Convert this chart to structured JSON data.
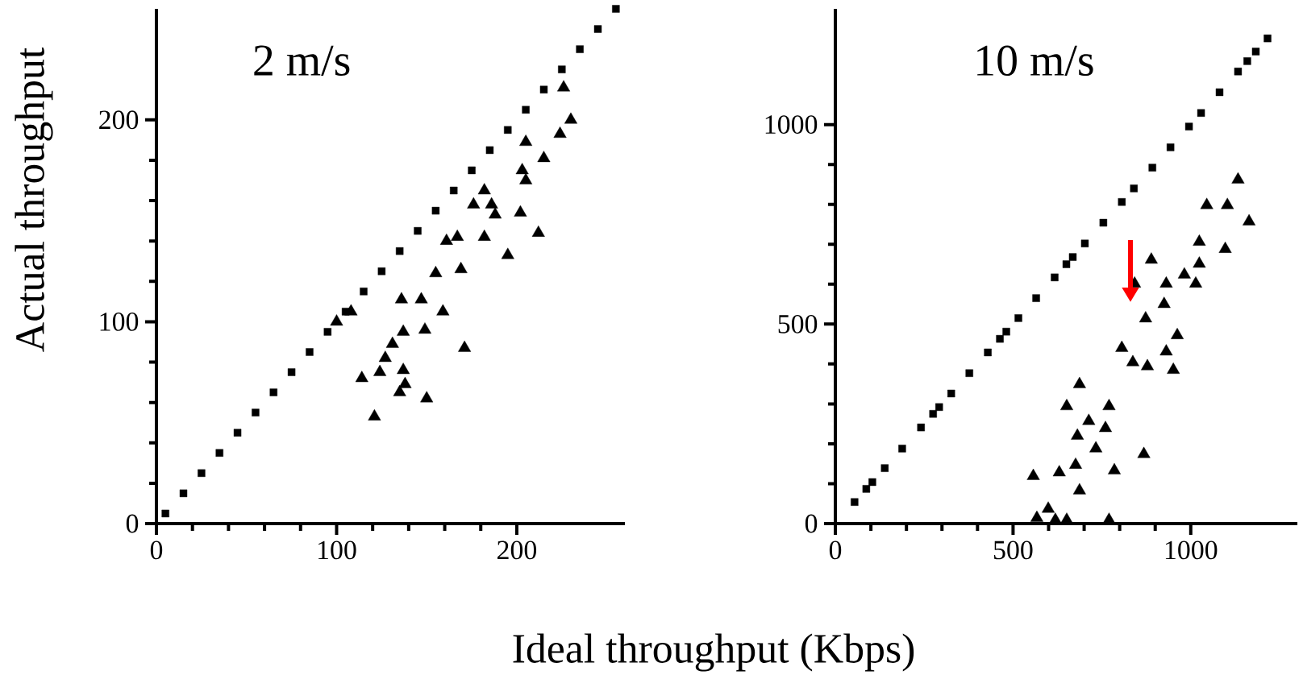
{
  "chart_data": [
    {
      "type": "scatter",
      "title": "2 m/s",
      "xlabel": "Ideal throughput (Kbps)",
      "ylabel": "Actual throughput",
      "xlim": [
        0,
        260
      ],
      "ylim": [
        0,
        255
      ],
      "xticks": [
        0,
        100,
        200
      ],
      "yticks": [
        0,
        100,
        200
      ],
      "series": [
        {
          "color": "#000000",
          "marker": "square",
          "x": [
            5,
            15,
            25,
            35,
            45,
            55,
            65,
            75,
            85,
            95,
            105,
            115,
            125,
            135,
            145,
            155,
            165,
            175,
            185,
            195,
            205,
            215,
            225,
            235,
            245,
            255
          ],
          "values": [
            5,
            15,
            25,
            35,
            45,
            55,
            65,
            75,
            85,
            95,
            105,
            115,
            125,
            135,
            145,
            155,
            165,
            175,
            185,
            195,
            205,
            215,
            225,
            235,
            245,
            255
          ]
        },
        {
          "color": "#000000",
          "marker": "triangle",
          "x": [
            226,
            230,
            224,
            205,
            215,
            203,
            205,
            182,
            186,
            176,
            202,
            188,
            212,
            167,
            182,
            161,
            195,
            169,
            155,
            147,
            136,
            159,
            108,
            100,
            149,
            137,
            131,
            127,
            171,
            124,
            114,
            137,
            138,
            135,
            150,
            121
          ],
          "values": [
            216,
            200,
            193,
            189,
            181,
            175,
            170,
            165,
            158,
            158,
            154,
            153,
            144,
            142,
            142,
            140,
            133,
            126,
            124,
            111,
            111,
            105,
            105,
            100,
            96,
            95,
            89,
            82,
            87,
            75,
            72,
            76,
            69,
            65,
            62,
            53
          ]
        }
      ]
    },
    {
      "type": "scatter",
      "title": "10 m/s",
      "xlim": [
        0,
        1300
      ],
      "ylim": [
        0,
        1290
      ],
      "xticks": [
        0,
        500,
        1000
      ],
      "yticks": [
        0,
        500,
        1000
      ],
      "series": [
        {
          "color": "#000000",
          "marker": "square",
          "x": [
            54,
            87,
            104,
            139,
            188,
            241,
            275,
            292,
            326,
            377,
            429,
            463,
            481,
            515,
            565,
            617,
            650,
            668,
            702,
            754,
            806,
            840,
            892,
            943,
            995,
            1029,
            1081,
            1133,
            1159,
            1183,
            1216
          ],
          "values": [
            54,
            87,
            104,
            139,
            188,
            241,
            275,
            292,
            326,
            377,
            429,
            463,
            481,
            515,
            565,
            617,
            650,
            668,
            702,
            754,
            806,
            840,
            892,
            943,
            995,
            1029,
            1081,
            1133,
            1159,
            1183,
            1216
          ]
        },
        {
          "color": "#000000",
          "marker": "triangle",
          "x": [
            1133,
            1045,
            1103,
            1164,
            1024,
            1097,
            889,
            1024,
            982,
            842,
            931,
            1014,
            925,
            873,
            962,
            806,
            837,
            878,
            931,
            951,
            687,
            651,
            770,
            713,
            760,
            681,
            733,
            868,
            676,
            785,
            630,
            557,
            687,
            599,
            567,
            651,
            770,
            619
          ],
          "values": [
            862,
            798,
            798,
            757,
            706,
            688,
            661,
            651,
            624,
            601,
            601,
            601,
            550,
            514,
            472,
            440,
            404,
            394,
            431,
            385,
            349,
            294,
            294,
            257,
            239,
            220,
            188,
            174,
            147,
            133,
            128,
            119,
            83,
            37,
            14,
            9,
            9,
            9
          ]
        }
      ]
    }
  ]
}
